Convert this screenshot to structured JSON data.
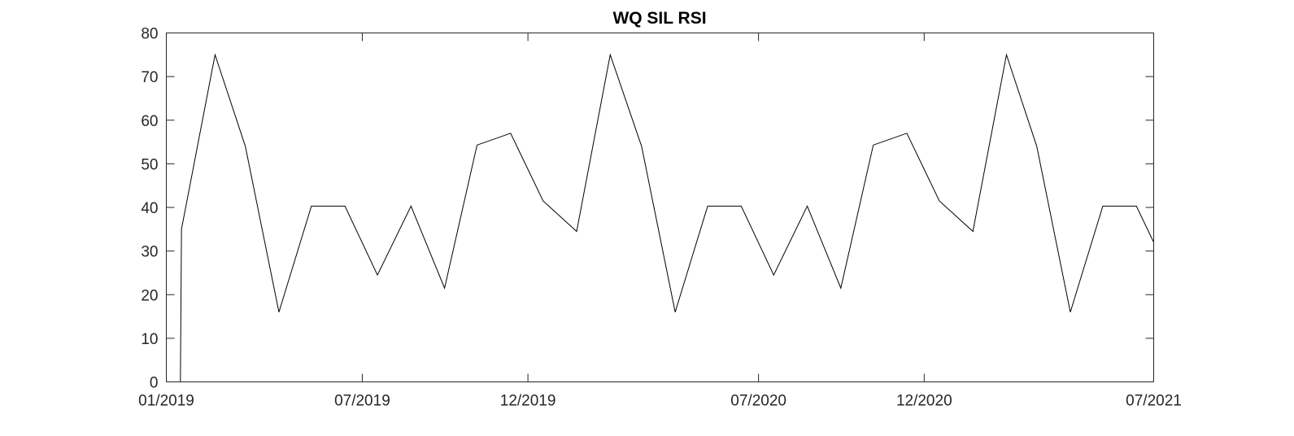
{
  "chart_data": {
    "type": "line",
    "title": "WQ SIL RSI",
    "xlabel": "",
    "ylabel": "",
    "ylim": [
      0,
      80
    ],
    "yticks": [
      0,
      10,
      20,
      30,
      40,
      50,
      60,
      70,
      80
    ],
    "xlim": [
      "2019-01-01",
      "2021-07-01"
    ],
    "xticks": [
      {
        "date": "2019-01-01",
        "label": "01/2019"
      },
      {
        "date": "2019-07-01",
        "label": "07/2019"
      },
      {
        "date": "2019-12-01",
        "label": "12/2019"
      },
      {
        "date": "2020-07-01",
        "label": "07/2020"
      },
      {
        "date": "2020-12-01",
        "label": "12/2020"
      },
      {
        "date": "2021-07-01",
        "label": "07/2021"
      }
    ],
    "grid": false,
    "legend": "none",
    "series": [
      {
        "color": "#000000",
        "points": [
          {
            "x": "2019-01-01",
            "y": 0
          },
          {
            "x": "2019-01-14",
            "y": 0
          },
          {
            "x": "2019-01-15",
            "y": 35
          },
          {
            "x": "2019-02-15",
            "y": 75
          },
          {
            "x": "2019-03-15",
            "y": 54
          },
          {
            "x": "2019-04-15",
            "y": 16
          },
          {
            "x": "2019-05-15",
            "y": 40.3
          },
          {
            "x": "2019-06-15",
            "y": 40.3
          },
          {
            "x": "2019-07-15",
            "y": 24.5
          },
          {
            "x": "2019-08-15",
            "y": 40.3
          },
          {
            "x": "2019-09-15",
            "y": 21.5
          },
          {
            "x": "2019-10-15",
            "y": 54.3
          },
          {
            "x": "2019-11-15",
            "y": 57
          },
          {
            "x": "2019-12-15",
            "y": 41.5
          },
          {
            "x": "2020-01-15",
            "y": 34.5
          },
          {
            "x": "2020-02-15",
            "y": 75
          },
          {
            "x": "2020-03-15",
            "y": 54
          },
          {
            "x": "2020-04-15",
            "y": 16
          },
          {
            "x": "2020-05-15",
            "y": 40.3
          },
          {
            "x": "2020-06-15",
            "y": 40.3
          },
          {
            "x": "2020-07-15",
            "y": 24.5
          },
          {
            "x": "2020-08-15",
            "y": 40.3
          },
          {
            "x": "2020-09-15",
            "y": 21.5
          },
          {
            "x": "2020-10-15",
            "y": 54.3
          },
          {
            "x": "2020-11-15",
            "y": 57
          },
          {
            "x": "2020-12-15",
            "y": 41.5
          },
          {
            "x": "2021-01-15",
            "y": 34.5
          },
          {
            "x": "2021-02-15",
            "y": 75
          },
          {
            "x": "2021-03-15",
            "y": 54
          },
          {
            "x": "2021-04-15",
            "y": 16
          },
          {
            "x": "2021-05-15",
            "y": 40.3
          },
          {
            "x": "2021-06-15",
            "y": 40.3
          },
          {
            "x": "2021-07-01",
            "y": 32
          }
        ]
      }
    ]
  }
}
